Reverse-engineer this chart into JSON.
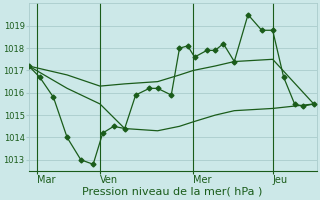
{
  "bg_color": "#cce8e8",
  "grid_color": "#aacccc",
  "line_color": "#1a5c1a",
  "marker_color": "#1a5c1a",
  "figwidth": 3.2,
  "figheight": 2.0,
  "dpi": 100,
  "xlim": [
    0,
    10.5
  ],
  "ylim": [
    1012.5,
    1020.0
  ],
  "yticks": [
    1013,
    1014,
    1015,
    1016,
    1017,
    1018,
    1019
  ],
  "ytick_fontsize": 6,
  "xtick_fontsize": 7,
  "xlabel": "Pression niveau de la mer( hPa )",
  "xlabel_fontsize": 8,
  "day_labels": [
    "Mar",
    "Ven",
    "Mer",
    "Jeu"
  ],
  "day_positions": [
    0.3,
    2.6,
    6.0,
    8.9
  ],
  "vline_positions": [
    0.3,
    2.6,
    6.0,
    8.9
  ],
  "s1_x": [
    0.0,
    0.4,
    0.9,
    1.4,
    1.9,
    2.35,
    2.7,
    3.1,
    3.5,
    3.9,
    4.4,
    4.7,
    5.2,
    5.5,
    5.8,
    6.05,
    6.5,
    6.8,
    7.1,
    7.5,
    8.0,
    8.5,
    8.9,
    9.3,
    9.7,
    10.0,
    10.4
  ],
  "s1_y": [
    1017.2,
    1016.7,
    1015.8,
    1014.0,
    1013.0,
    1012.8,
    1014.2,
    1014.5,
    1014.4,
    1015.9,
    1016.2,
    1016.2,
    1015.9,
    1018.0,
    1018.1,
    1017.6,
    1017.9,
    1017.9,
    1018.2,
    1017.4,
    1019.5,
    1018.8,
    1018.8,
    1016.7,
    1015.5,
    1015.4,
    1015.5
  ],
  "s2_x": [
    0.0,
    1.4,
    2.6,
    3.5,
    4.7,
    5.5,
    6.0,
    6.8,
    7.5,
    8.9,
    10.4
  ],
  "s2_y": [
    1017.2,
    1016.8,
    1016.3,
    1016.4,
    1016.5,
    1016.8,
    1017.0,
    1017.2,
    1017.4,
    1017.5,
    1015.5
  ],
  "s3_x": [
    0.0,
    1.4,
    2.6,
    3.5,
    4.7,
    5.5,
    6.0,
    6.8,
    7.5,
    8.9,
    10.4
  ],
  "s3_y": [
    1017.2,
    1016.2,
    1015.5,
    1014.4,
    1014.3,
    1014.5,
    1014.7,
    1015.0,
    1015.2,
    1015.3,
    1015.5
  ]
}
